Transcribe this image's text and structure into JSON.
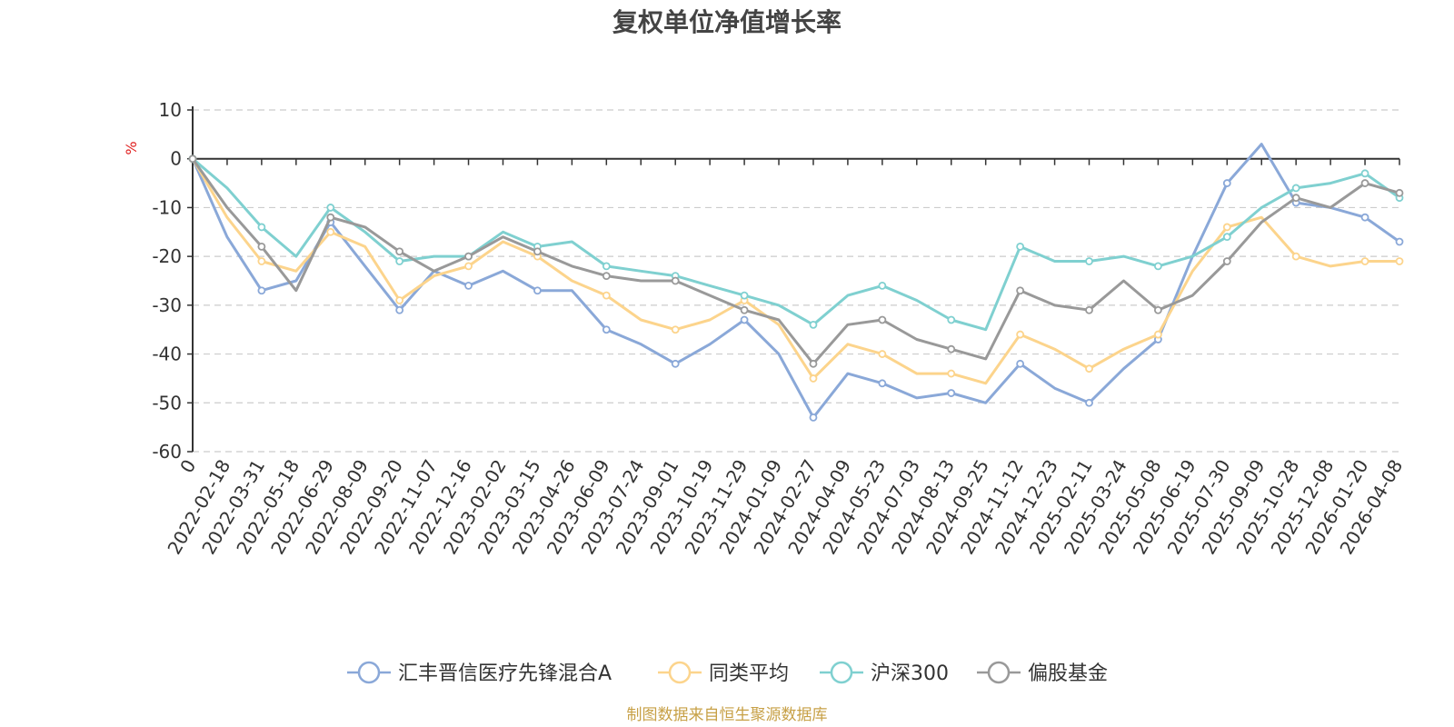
{
  "chart_data": {
    "type": "line",
    "title": "复权单位净值增长率",
    "ylabel": "%",
    "xlabel": "",
    "ylim": [
      -60,
      10
    ],
    "yticks": [
      10,
      0,
      -10,
      -20,
      -30,
      -40,
      -50,
      -60
    ],
    "grid": true,
    "legend_position": "bottom-center",
    "categories": [
      "0",
      "2022-02-18",
      "2022-03-31",
      "2022-05-18",
      "2022-06-29",
      "2022-08-09",
      "2022-09-20",
      "2022-11-07",
      "2022-12-16",
      "2023-02-02",
      "2023-03-15",
      "2023-04-26",
      "2023-06-09",
      "2023-07-24",
      "2023-09-01",
      "2023-10-19",
      "2023-11-29",
      "2024-01-09",
      "2024-02-27",
      "2024-04-09",
      "2024-05-23",
      "2024-07-03",
      "2024-08-13",
      "2024-09-25",
      "2024-11-12",
      "2024-12-23",
      "2025-02-11",
      "2025-03-24",
      "2025-05-08",
      "2025-06-19",
      "2025-07-30",
      "2025-09-09",
      "2025-10-28",
      "2025-12-08",
      "2026-01-20",
      "2026-04-08"
    ],
    "series": [
      {
        "name": "汇丰晋信医疗先锋混合A",
        "color": "#8aa8d8",
        "values": [
          0,
          -16,
          -27,
          -25,
          -13,
          -22,
          -31,
          -23,
          -26,
          -23,
          -27,
          -27,
          -35,
          -38,
          -42,
          -38,
          -33,
          -40,
          -53,
          -44,
          -46,
          -49,
          -48,
          -50,
          -42,
          -47,
          -50,
          -43,
          -37,
          -20,
          -5,
          3,
          -9,
          -10,
          -12,
          -17
        ]
      },
      {
        "name": "同类平均",
        "color": "#fcd48c",
        "values": [
          0,
          -12,
          -21,
          -23,
          -15,
          -18,
          -29,
          -24,
          -22,
          -17,
          -20,
          -25,
          -28,
          -33,
          -35,
          -33,
          -29,
          -34,
          -45,
          -38,
          -40,
          -44,
          -44,
          -46,
          -36,
          -39,
          -43,
          -39,
          -36,
          -23,
          -14,
          -12,
          -20,
          -22,
          -21,
          -21
        ]
      },
      {
        "name": "沪深300",
        "color": "#7fd0d0",
        "values": [
          0,
          -6,
          -14,
          -20,
          -10,
          -15,
          -21,
          -20,
          -20,
          -15,
          -18,
          -17,
          -22,
          -23,
          -24,
          -26,
          -28,
          -30,
          -34,
          -28,
          -26,
          -29,
          -33,
          -35,
          -18,
          -21,
          -21,
          -20,
          -22,
          -20,
          -16,
          -10,
          -6,
          -5,
          -3,
          -8
        ]
      },
      {
        "name": "偏股基金",
        "color": "#999999",
        "values": [
          0,
          -10,
          -18,
          -27,
          -12,
          -14,
          -19,
          -23,
          -20,
          -16,
          -19,
          -22,
          -24,
          -25,
          -25,
          -28,
          -31,
          -33,
          -42,
          -34,
          -33,
          -37,
          -39,
          -41,
          -27,
          -30,
          -31,
          -25,
          -31,
          -28,
          -21,
          -13,
          -8,
          -10,
          -5,
          -7
        ]
      }
    ],
    "source_note": "制图数据来自恒生聚源数据库"
  }
}
